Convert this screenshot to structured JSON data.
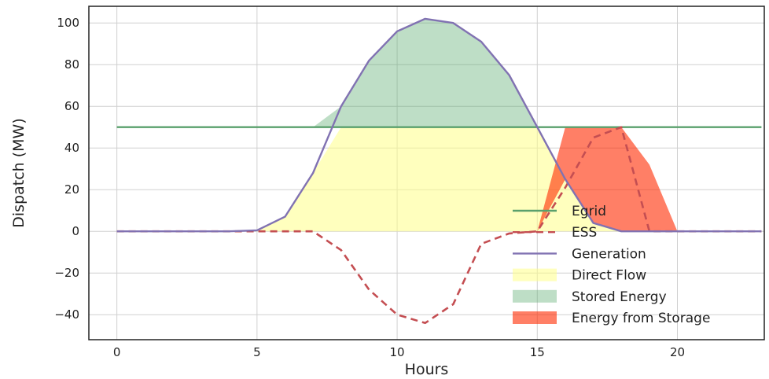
{
  "chart_data": {
    "type": "line",
    "title": "",
    "xlabel": "Hours",
    "ylabel": "Dispatch (MW)",
    "xlim": [
      -1,
      23.1
    ],
    "ylim": [
      -52,
      108
    ],
    "xticks": [
      0,
      5,
      10,
      15,
      20
    ],
    "yticks": [
      -40,
      -20,
      0,
      20,
      40,
      60,
      80,
      100
    ],
    "grid": true,
    "legend_position": "bottom-right",
    "x": [
      0,
      1,
      2,
      3,
      4,
      5,
      6,
      7,
      8,
      9,
      10,
      11,
      12,
      13,
      14,
      15,
      16,
      17,
      18,
      19,
      20,
      21,
      22,
      23
    ],
    "series": [
      {
        "name": "Egrid",
        "style": "solid",
        "color": "#5aa06c",
        "values": [
          50,
          50,
          50,
          50,
          50,
          50,
          50,
          50,
          50,
          50,
          50,
          50,
          50,
          50,
          50,
          50,
          50,
          50,
          50,
          50,
          50,
          50,
          50,
          50
        ]
      },
      {
        "name": "ESS",
        "style": "dashed",
        "color": "#c44e52",
        "values": [
          0,
          0,
          0,
          0,
          0,
          0,
          0,
          0,
          -9,
          -28,
          -40,
          -44,
          -35,
          -6,
          -1,
          0,
          21,
          45,
          50,
          0,
          0,
          0,
          0,
          0
        ]
      },
      {
        "name": "Generation",
        "style": "solid",
        "color": "#8172b2",
        "values": [
          0,
          0,
          0,
          0,
          0,
          0.5,
          7,
          28,
          60,
          82,
          96,
          102,
          100,
          91,
          75,
          50,
          25,
          4,
          0,
          0,
          0,
          0,
          0,
          0
        ]
      }
    ],
    "areas": [
      {
        "name": "Direct Flow",
        "color": "#ffff88",
        "opacity": 0.55,
        "lower": [
          0,
          0,
          0,
          0,
          0,
          0,
          0,
          0,
          0,
          0,
          0,
          0,
          0,
          0,
          0,
          0,
          0,
          0,
          0,
          0,
          0,
          0,
          0,
          0
        ],
        "upper": [
          0,
          0,
          0,
          0,
          0,
          0.5,
          7,
          28,
          50,
          50,
          50,
          50,
          50,
          50,
          50,
          50,
          25,
          4,
          0,
          0,
          0,
          0,
          0,
          0
        ]
      },
      {
        "name": "Stored Energy",
        "color": "#55a868",
        "opacity": 0.38,
        "lower": [
          50,
          50,
          50,
          50,
          50,
          50,
          50,
          50,
          50,
          50,
          50,
          50,
          50,
          50,
          50,
          50,
          50,
          50,
          50,
          50,
          50,
          50,
          50,
          50
        ],
        "upper": [
          50,
          50,
          50,
          50,
          50,
          50,
          50,
          50,
          60,
          82,
          96,
          102,
          100,
          91,
          75,
          50,
          50,
          50,
          50,
          50,
          50,
          50,
          50,
          50
        ]
      },
      {
        "name": "Energy from Storage",
        "color": "#ff2a00",
        "opacity": 0.6,
        "lower": [
          0,
          0,
          0,
          0,
          0,
          0,
          0,
          0,
          0,
          0,
          0,
          0,
          0,
          0,
          0,
          0,
          25,
          4,
          0,
          0,
          0,
          0,
          0,
          0
        ],
        "upper": [
          0,
          0,
          0,
          0,
          0,
          0,
          0,
          0,
          0,
          0,
          0,
          0,
          0,
          0,
          0,
          0,
          50,
          50,
          50,
          32,
          0,
          0,
          0,
          0
        ]
      }
    ],
    "legend": [
      "Egrid",
      "ESS",
      "Generation",
      "Direct Flow",
      "Stored Energy",
      "Energy from Storage"
    ]
  }
}
